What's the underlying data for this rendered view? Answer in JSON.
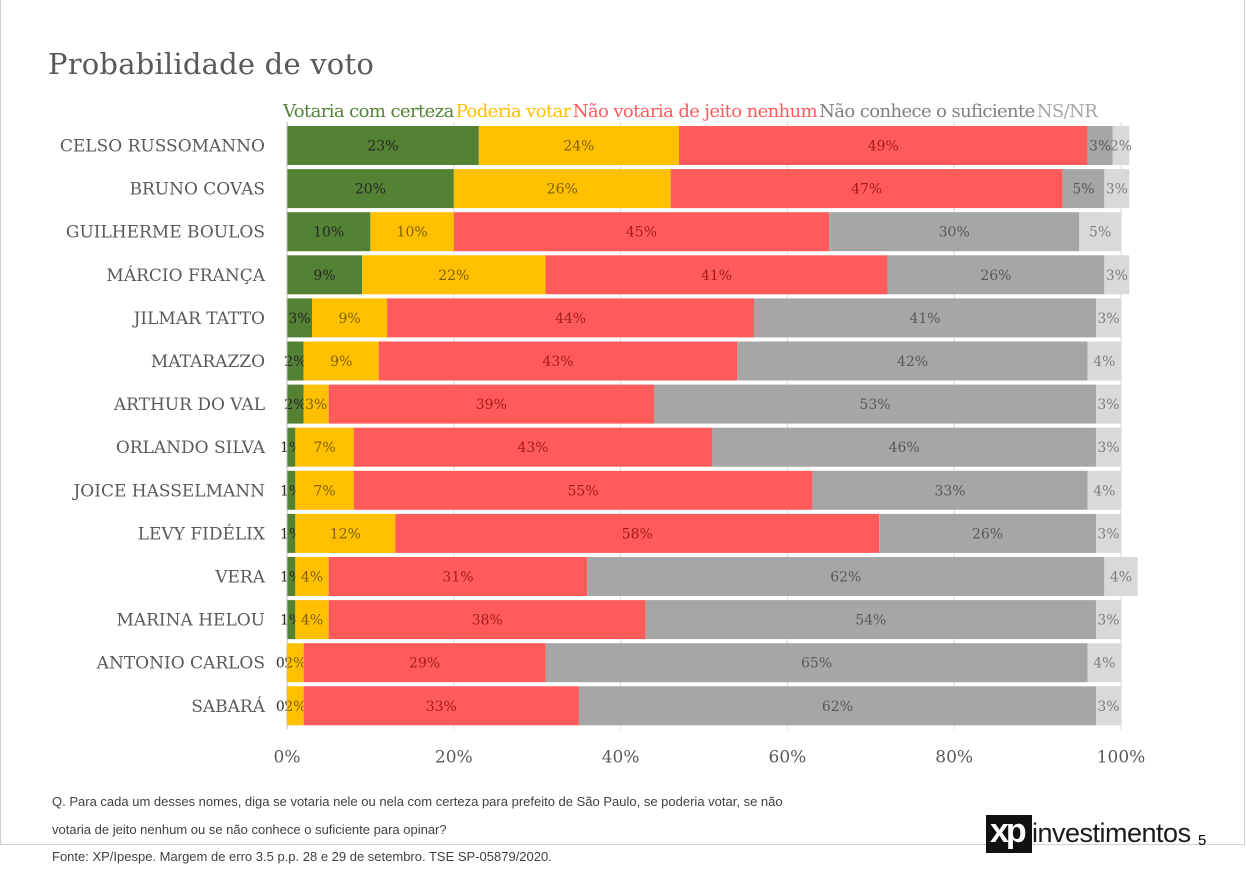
{
  "page": {
    "title": "Probabilidade de voto",
    "footnote_line1": "Q. Para cada um desses nomes, diga se votaria nele ou nela com certeza para prefeito de São Paulo, se poderia votar, se não",
    "footnote_line2": "votaria de jeito nenhum ou se não conhece o suficiente para opinar?",
    "source": "Fonte: XP/Ipespe. Margem de erro 3.5 p.p. 28 e 29 de setembro. TSE SP-05879/2020.",
    "logo_mark": "xp",
    "logo_text": "investimentos",
    "page_number": "5"
  },
  "chart_data": {
    "type": "bar",
    "orientation": "horizontal",
    "stacked": true,
    "title": "Probabilidade de voto",
    "xlabel": "",
    "ylabel": "",
    "xlim": [
      0,
      100
    ],
    "x_ticks": [
      "0%",
      "20%",
      "40%",
      "60%",
      "80%",
      "100%"
    ],
    "grid": true,
    "legend_position": "top",
    "categories": [
      "CELSO RUSSOMANNO",
      "BRUNO COVAS",
      "GUILHERME BOULOS",
      "MÁRCIO FRANÇA",
      "JILMAR TATTO",
      "MATARAZZO",
      "ARTHUR DO VAL",
      "ORLANDO SILVA",
      "JOICE HASSELMANN",
      "LEVY FIDÉLIX",
      "VERA",
      "MARINA HELOU",
      "ANTONIO CARLOS",
      "SABARÁ"
    ],
    "series": [
      {
        "name": "Votaria com certeza",
        "color": "#548235",
        "label_color": "#262626",
        "values": [
          23,
          20,
          10,
          9,
          3,
          2,
          2,
          1,
          1,
          1,
          1,
          1,
          0,
          0
        ]
      },
      {
        "name": "Poderia votar",
        "color": "#ffc000",
        "label_color": "#7f6000",
        "values": [
          24,
          26,
          10,
          22,
          9,
          9,
          3,
          7,
          7,
          12,
          4,
          4,
          2,
          2
        ]
      },
      {
        "name": "Não votaria de jeito nenhum",
        "color": "#ff5b5b",
        "label_color": "#a61c1c",
        "values": [
          49,
          47,
          45,
          41,
          44,
          43,
          39,
          43,
          55,
          58,
          31,
          38,
          29,
          33
        ]
      },
      {
        "name": "Não conhece o suficiente",
        "color": "#a6a6a6",
        "label_color": "#595959",
        "values": [
          3,
          5,
          30,
          26,
          41,
          42,
          53,
          46,
          33,
          26,
          62,
          54,
          65,
          62
        ]
      },
      {
        "name": "NS/NR",
        "color": "#d9d9d9",
        "label_color": "#7f7f7f",
        "values": [
          2,
          3,
          5,
          3,
          3,
          4,
          3,
          3,
          4,
          3,
          4,
          3,
          4,
          3
        ]
      }
    ]
  }
}
